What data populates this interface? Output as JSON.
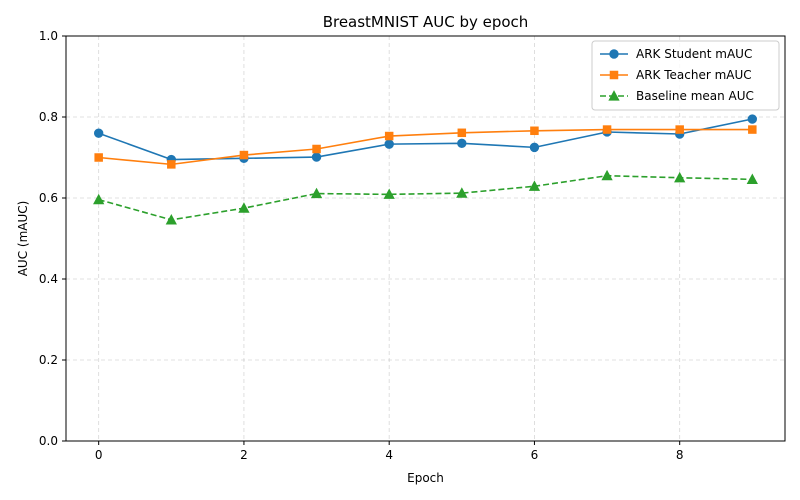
{
  "chart_data": {
    "type": "line",
    "title": "BreastMNIST AUC by epoch",
    "xlabel": "Epoch",
    "ylabel": "AUC (mAUC)",
    "x": [
      0,
      1,
      2,
      3,
      4,
      5,
      6,
      7,
      8,
      9
    ],
    "xlim": [
      -0.45,
      9.45
    ],
    "ylim": [
      0.0,
      1.0
    ],
    "xticks": [
      0,
      2,
      4,
      6,
      8
    ],
    "yticks": [
      0.0,
      0.2,
      0.4,
      0.6,
      0.8,
      1.0
    ],
    "xtick_labels": [
      "0",
      "2",
      "4",
      "6",
      "8"
    ],
    "ytick_labels": [
      "0.0",
      "0.2",
      "0.4",
      "0.6",
      "0.8",
      "1.0"
    ],
    "grid": true,
    "legend_position": "top-right",
    "series": [
      {
        "name": "ARK Student mAUC",
        "color": "#1f77b4",
        "marker": "circle",
        "line_style": "solid",
        "values": [
          0.76,
          0.695,
          0.698,
          0.701,
          0.733,
          0.735,
          0.725,
          0.763,
          0.758,
          0.795
        ]
      },
      {
        "name": "ARK Teacher mAUC",
        "color": "#ff7f0e",
        "marker": "square",
        "line_style": "solid",
        "values": [
          0.7,
          0.683,
          0.706,
          0.721,
          0.753,
          0.761,
          0.766,
          0.769,
          0.769,
          0.769
        ]
      },
      {
        "name": "Baseline mean AUC",
        "color": "#2ca02c",
        "marker": "triangle",
        "line_style": "dashed",
        "values": [
          0.596,
          0.546,
          0.575,
          0.611,
          0.609,
          0.612,
          0.629,
          0.655,
          0.65,
          0.646
        ]
      }
    ]
  }
}
